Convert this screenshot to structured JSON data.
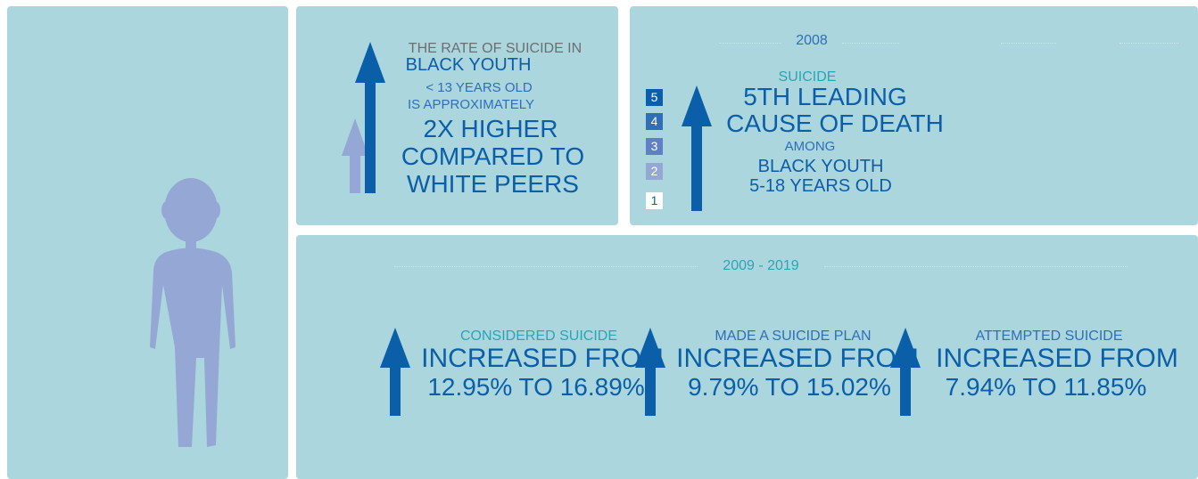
{
  "colors": {
    "panel_bg": "#abd6dd",
    "dark_blue": "#0b5ea8",
    "light_purple": "#95a7d4",
    "teal": "#2aa5b5",
    "gray_text": "#6b6f73"
  },
  "figure": {
    "icon": "child-silhouette-icon"
  },
  "panel_rate": {
    "line1": "THE RATE OF SUICIDE IN",
    "line2": "BLACK YOUTH",
    "line3": "< 13 YEARS OLD",
    "line4": "IS APPROXIMATELY",
    "line5": "2X HIGHER",
    "line6": "COMPARED TO",
    "line7": "WHITE PEERS",
    "icons": [
      "tall-dark-arrow-icon",
      "short-light-arrow-icon"
    ]
  },
  "panel_2008": {
    "year": "2008",
    "label": "SUICIDE",
    "line1": "5TH LEADING",
    "line2": "CAUSE OF DEATH",
    "line3": "AMONG",
    "line4": "BLACK YOUTH",
    "line5": "5-18 YEARS OLD",
    "ranks": [
      {
        "value": "5",
        "color": "#0b5ea8"
      },
      {
        "value": "4",
        "color": "#2e6fb8"
      },
      {
        "value": "3",
        "color": "#5f81c3"
      },
      {
        "value": "2",
        "color": "#95a7d4"
      },
      {
        "value": "1",
        "color": "#ffffff"
      }
    ]
  },
  "panel_trend": {
    "years": "2009 - 2019",
    "stats": [
      {
        "label": "CONSIDERED SUICIDE",
        "line1": "INCREASED FROM",
        "line2": "12.95% TO 16.89%",
        "label_color": "#2aa5b5"
      },
      {
        "label": "MADE A SUICIDE PLAN",
        "line1": "INCREASED FROM",
        "line2": "9.79% TO 15.02%",
        "label_color": "#2e6fb8"
      },
      {
        "label": "ATTEMPTED SUICIDE",
        "line1": "INCREASED FROM",
        "line2": "7.94% TO 11.85%",
        "label_color": "#2e6fb8"
      }
    ]
  }
}
